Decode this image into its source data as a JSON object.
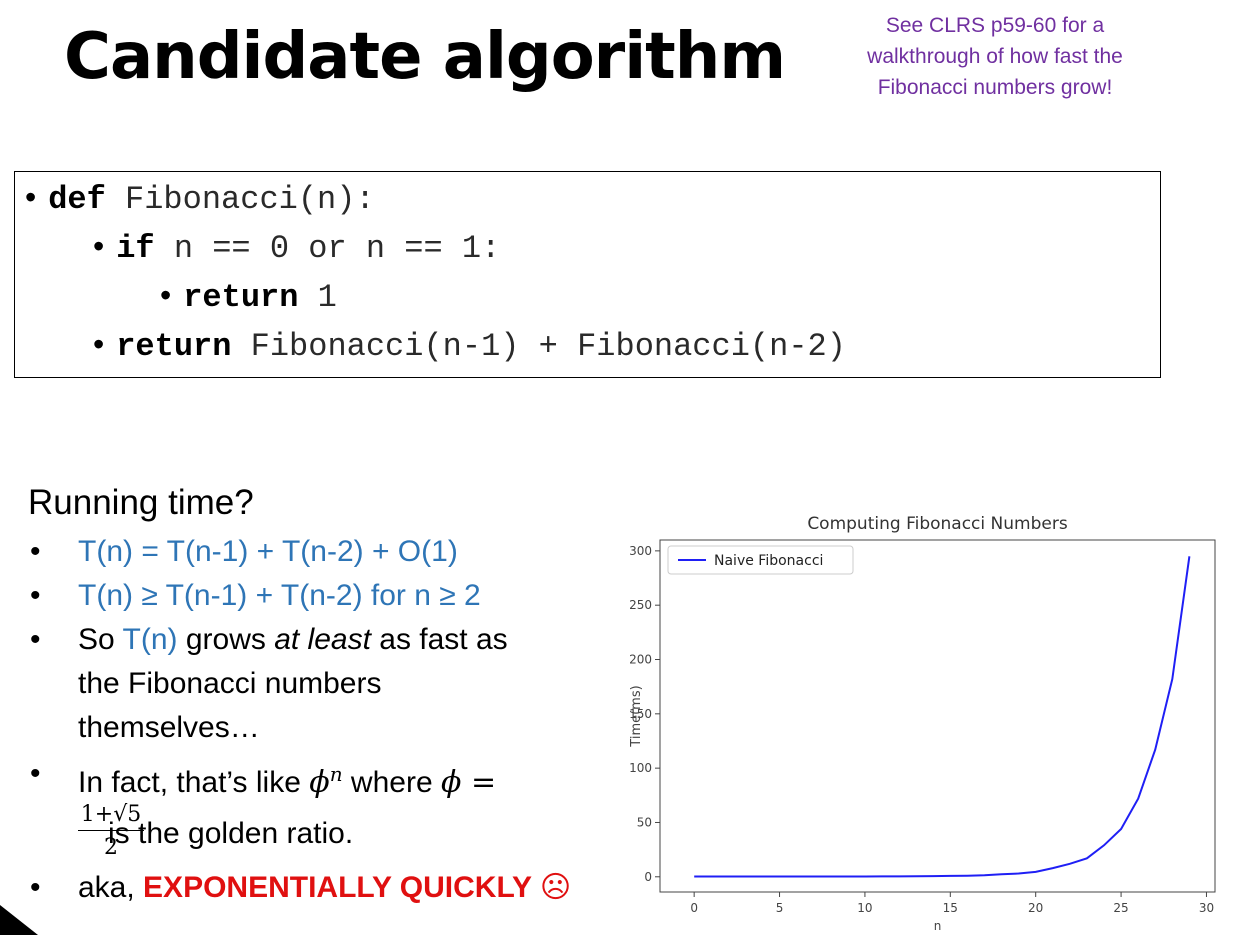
{
  "slide": {
    "title": "Candidate algorithm",
    "note": "See CLRS p59-60 for a walkthrough of how fast the Fibonacci numbers grow!"
  },
  "code": {
    "line1_kw": "def",
    "line1_rest": " Fibonacci(n):",
    "line2_kw": "if",
    "line2_rest": " n == 0 or n == 1:",
    "line3_kw": "return",
    "line3_rest": " 1",
    "line4_kw": "return",
    "line4_rest": " Fibonacci(n-1) + Fibonacci(n-2)"
  },
  "running": {
    "heading": "Running time?",
    "b1": "T(n) = T(n-1) + T(n-2) + O(1)",
    "b2": "T(n) ≥ T(n-1) + T(n-2) for n ≥ 2",
    "b3_pre": "So ",
    "b3_tn": "T(n)",
    "b3_mid": " grows ",
    "b3_em": "at least",
    "b3_post": " as fast as",
    "b3_l2": "the Fibonacci numbers",
    "b3_l3": "themselves…",
    "b4_pre": "In fact, that’s like ",
    "b4_phi": "ϕ",
    "b4_exp": "n",
    "b4_mid": " where ",
    "b4_phi2": "ϕ",
    "b4_eq": " =",
    "frac_num": "1+√5",
    "frac_den": "2",
    "b4_l2": "is the golden ratio.",
    "b5_pre": "aka, ",
    "b5_red": "EXPONENTIALLY QUICKLY ☹"
  },
  "chart_data": {
    "type": "line",
    "title": "Computing Fibonacci Numbers",
    "xlabel": "n",
    "ylabel": "Time(ms)",
    "xlim": [
      -2,
      30.5
    ],
    "ylim": [
      -14,
      310
    ],
    "xticks": [
      0,
      5,
      10,
      15,
      20,
      25,
      30
    ],
    "yticks": [
      0,
      50,
      100,
      150,
      200,
      250,
      300
    ],
    "legend_position": "top-left",
    "grid": false,
    "series": [
      {
        "name": "Naive Fibonacci",
        "color": "#1f1ff5",
        "x": [
          0,
          1,
          2,
          3,
          4,
          5,
          6,
          7,
          8,
          9,
          10,
          11,
          12,
          13,
          14,
          15,
          16,
          17,
          18,
          19,
          20,
          21,
          22,
          23,
          24,
          25,
          26,
          27,
          28,
          29
        ],
        "y": [
          0.3,
          0.3,
          0.3,
          0.3,
          0.3,
          0.3,
          0.3,
          0.3,
          0.3,
          0.3,
          0.3,
          0.4,
          0.4,
          0.5,
          0.6,
          0.8,
          1.0,
          1.5,
          2.3,
          3.0,
          4.5,
          8,
          12,
          17,
          29,
          44,
          72,
          117,
          182,
          295
        ]
      }
    ]
  }
}
